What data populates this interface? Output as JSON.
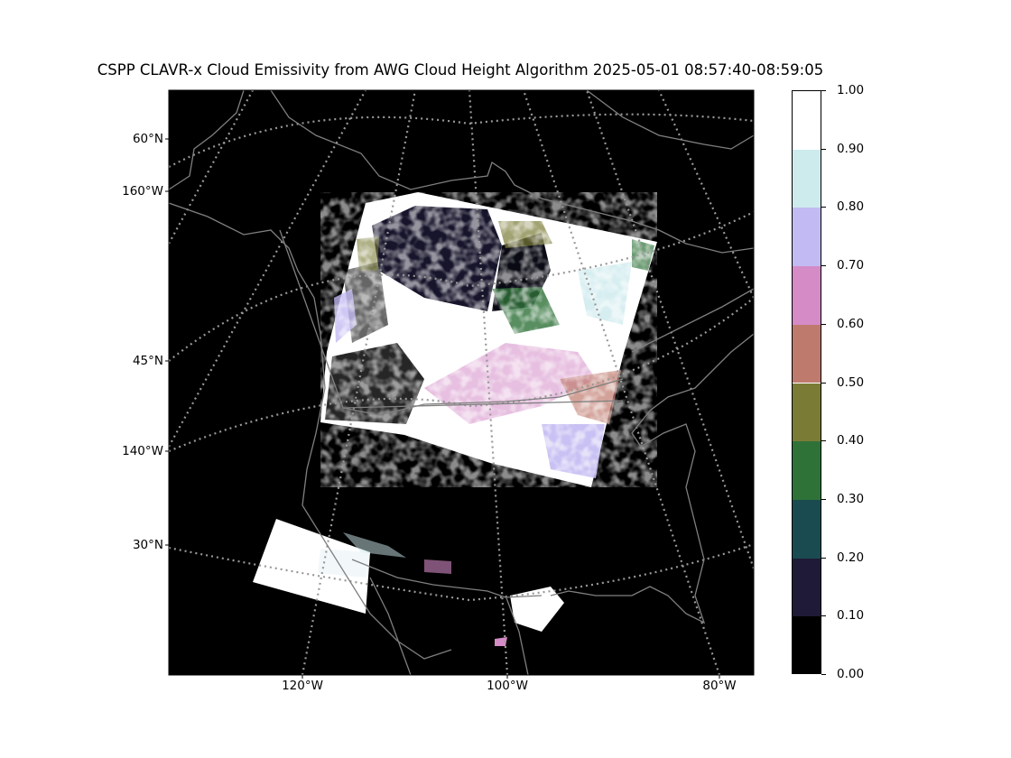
{
  "title": "CSPP CLAVR-x Cloud Emissivity from AWG Cloud Height Algorithm 2025-05-01 08:57:40-08:59:05",
  "map": {
    "projection": "polar-stereographic",
    "background_color": "#000000",
    "coastline_color": "#7f7f7f",
    "graticule_color": "#999999",
    "graticule_style": "dotted",
    "lat_labels": [
      "60°N",
      "45°N",
      "30°N"
    ],
    "left_lon_labels": [
      "160°W",
      "140°W"
    ],
    "bottom_lon_labels": [
      "120°W",
      "100°W",
      "80°W"
    ]
  },
  "colorbar": {
    "ticks": [
      "1.00",
      "0.90",
      "0.80",
      "0.70",
      "0.60",
      "0.50",
      "0.40",
      "0.30",
      "0.20",
      "0.10",
      "0.00"
    ],
    "bins": [
      {
        "from": 0.0,
        "to": 0.1,
        "color": "#000000"
      },
      {
        "from": 0.1,
        "to": 0.2,
        "color": "#1f1a38"
      },
      {
        "from": 0.2,
        "to": 0.3,
        "color": "#1a4b50"
      },
      {
        "from": 0.3,
        "to": 0.4,
        "color": "#2e7238"
      },
      {
        "from": 0.4,
        "to": 0.5,
        "color": "#7a7c36"
      },
      {
        "from": 0.5,
        "to": 0.6,
        "color": "#bf7a6e"
      },
      {
        "from": 0.6,
        "to": 0.7,
        "color": "#d48bc6"
      },
      {
        "from": 0.7,
        "to": 0.8,
        "color": "#c2baf2"
      },
      {
        "from": 0.8,
        "to": 0.9,
        "color": "#cdeaed"
      },
      {
        "from": 0.9,
        "to": 1.0,
        "color": "#ffffff"
      }
    ]
  }
}
